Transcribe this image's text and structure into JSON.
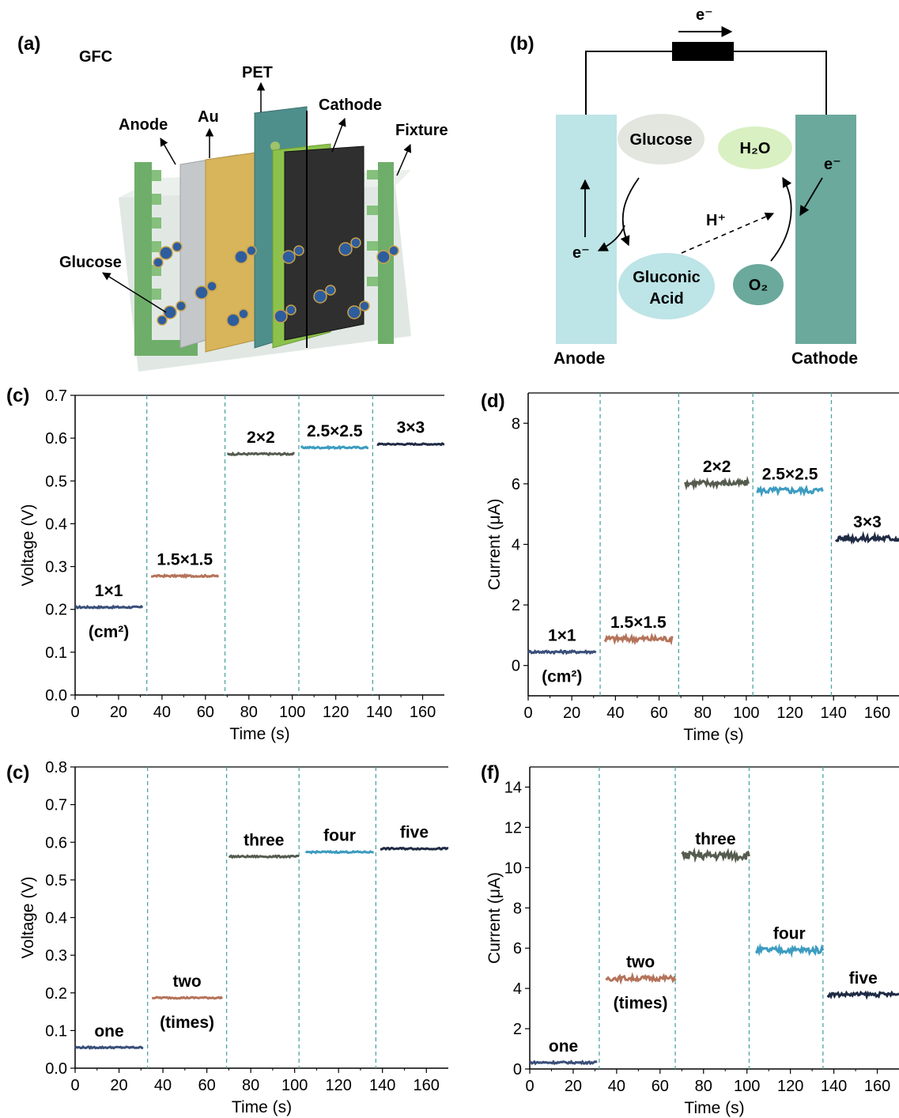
{
  "panels": {
    "a": {
      "label": "(a)",
      "title": "GFC",
      "labels": {
        "pet": "PET",
        "au": "Au",
        "anode": "Anode",
        "cathode": "Cathode",
        "fixture": "Fixture",
        "glucose": "Glucose"
      }
    },
    "b": {
      "label": "(b)",
      "electron_top": "e⁻",
      "glucose": "Glucose",
      "water": "H₂O",
      "electron_right": "e⁻",
      "proton": "H⁺",
      "electron_left": "e⁻",
      "gluconic_line1": "Gluconic",
      "gluconic_line2": "Acid",
      "oxygen": "O₂",
      "anode": "Anode",
      "cathode": "Cathode",
      "colors": {
        "anode": "#bde4e6",
        "cathode": "#6aa99c",
        "glucose": "#e3e6df",
        "water": "#d9f0c2",
        "gluconic": "#bde4e6",
        "oxygen": "#6aa99c"
      }
    }
  },
  "chart_data": [
    {
      "panel": "(c)",
      "type": "line",
      "xlabel": "Time (s)",
      "ylabel": "Voltage (V)",
      "xlim": [
        0,
        170
      ],
      "ylim": [
        0,
        0.7
      ],
      "xticks": [
        "0",
        "20",
        "40",
        "60",
        "80",
        "100",
        "120",
        "140",
        "160"
      ],
      "yticks": [
        "0.0",
        "0.1",
        "0.2",
        "0.3",
        "0.4",
        "0.5",
        "0.6",
        "0.7"
      ],
      "dividers": [
        33,
        69,
        103,
        137
      ],
      "series": [
        {
          "name": "1×1",
          "sub": "(cm²)",
          "color": "#3a4f7a",
          "x": [
            0,
            31
          ],
          "y": 0.205,
          "noise": 0.002
        },
        {
          "name": "1.5×1.5",
          "color": "#b5735a",
          "x": [
            35,
            66
          ],
          "y": 0.278,
          "noise": 0.002
        },
        {
          "name": "2×2",
          "color": "#555c4f",
          "x": [
            70,
            101
          ],
          "y": 0.563,
          "noise": 0.002
        },
        {
          "name": "2.5×2.5",
          "color": "#3d9cc0",
          "x": [
            104,
            135
          ],
          "y": 0.578,
          "noise": 0.002
        },
        {
          "name": "3×3",
          "color": "#1f2a44",
          "x": [
            139,
            170
          ],
          "y": 0.586,
          "noise": 0.0015
        }
      ]
    },
    {
      "panel": "(d)",
      "type": "line",
      "xlabel": "Time (s)",
      "ylabel": "Current (μA)",
      "xlim": [
        0,
        170
      ],
      "ylim": [
        -1,
        9
      ],
      "xticks": [
        "0",
        "20",
        "40",
        "60",
        "80",
        "100",
        "120",
        "140",
        "160"
      ],
      "yticks": [
        "0",
        "2",
        "4",
        "6",
        "8"
      ],
      "dividers": [
        33,
        69,
        103,
        139
      ],
      "series": [
        {
          "name": "1×1",
          "sub": "(cm²)",
          "color": "#3a4f7a",
          "x": [
            0,
            31
          ],
          "y": 0.45,
          "noise": 0.04
        },
        {
          "name": "1.5×1.5",
          "color": "#b5735a",
          "x": [
            35,
            66
          ],
          "y": 0.88,
          "noise": 0.1
        },
        {
          "name": "2×2",
          "color": "#555c4f",
          "x": [
            72,
            101
          ],
          "y": 6.02,
          "noise": 0.1
        },
        {
          "name": "2.5×2.5",
          "color": "#3d9cc0",
          "x": [
            105,
            135
          ],
          "y": 5.78,
          "noise": 0.1
        },
        {
          "name": "3×3",
          "color": "#1f2a44",
          "x": [
            141,
            170
          ],
          "y": 4.2,
          "noise": 0.1
        }
      ]
    },
    {
      "panel": "(c)",
      "type": "line",
      "xlabel": "Time (s)",
      "ylabel": "Voltage (V)",
      "xlim": [
        0,
        170
      ],
      "ylim": [
        0,
        0.8
      ],
      "xticks": [
        "0",
        "20",
        "40",
        "60",
        "80",
        "100",
        "120",
        "140",
        "160"
      ],
      "yticks": [
        "0.0",
        "0.1",
        "0.2",
        "0.3",
        "0.4",
        "0.5",
        "0.6",
        "0.7",
        "0.8"
      ],
      "dividers": [
        33,
        69,
        102,
        137
      ],
      "series": [
        {
          "name": "one",
          "color": "#3a4f7a",
          "x": [
            0,
            31
          ],
          "y": 0.055,
          "noise": 0.002
        },
        {
          "name": "two",
          "sub": "(times)",
          "color": "#b5735a",
          "x": [
            35,
            67
          ],
          "y": 0.187,
          "noise": 0.002
        },
        {
          "name": "three",
          "color": "#555c4f",
          "x": [
            70,
            102
          ],
          "y": 0.562,
          "noise": 0.002
        },
        {
          "name": "four",
          "color": "#3d9cc0",
          "x": [
            105,
            136
          ],
          "y": 0.574,
          "noise": 0.002
        },
        {
          "name": "five",
          "color": "#1f2a44",
          "x": [
            139,
            170
          ],
          "y": 0.583,
          "noise": 0.002
        }
      ]
    },
    {
      "panel": "(f)",
      "type": "line",
      "xlabel": "Time (s)",
      "ylabel": "Current (μA)",
      "xlim": [
        0,
        170
      ],
      "ylim": [
        0,
        15
      ],
      "xticks": [
        "0",
        "20",
        "40",
        "60",
        "80",
        "100",
        "120",
        "140",
        "160"
      ],
      "yticks": [
        "0",
        "2",
        "4",
        "6",
        "8",
        "10",
        "12",
        "14"
      ],
      "dividers": [
        32,
        67,
        101,
        135
      ],
      "series": [
        {
          "name": "one",
          "color": "#3a4f7a",
          "x": [
            0,
            31
          ],
          "y": 0.32,
          "noise": 0.05
        },
        {
          "name": "two",
          "sub": "(times)",
          "color": "#b5735a",
          "x": [
            35,
            67
          ],
          "y": 4.5,
          "noise": 0.12
        },
        {
          "name": "three",
          "color": "#555c4f",
          "x": [
            70,
            101
          ],
          "y": 10.6,
          "noise": 0.2
        },
        {
          "name": "four",
          "color": "#3d9cc0",
          "x": [
            104,
            135
          ],
          "y": 5.9,
          "noise": 0.15
        },
        {
          "name": "five",
          "color": "#1f2a44",
          "x": [
            137,
            170
          ],
          "y": 3.7,
          "noise": 0.1
        }
      ]
    }
  ]
}
